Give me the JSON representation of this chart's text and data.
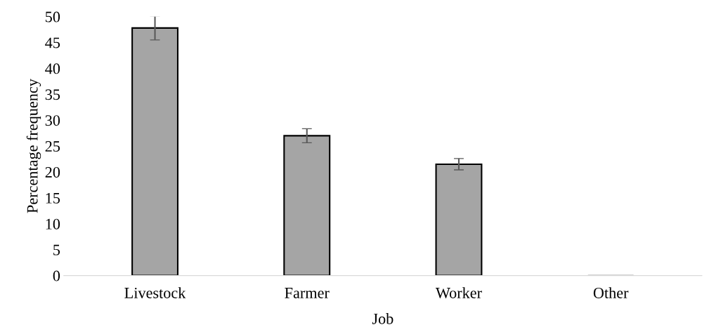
{
  "chart_data": {
    "type": "bar",
    "xlabel": "Job",
    "ylabel": "Percentage frequency",
    "categories": [
      "Livestock",
      "Farmer",
      "Worker",
      "Other"
    ],
    "values": [
      47.8,
      27.0,
      21.5,
      0
    ],
    "errors": [
      2.3,
      1.35,
      1.1,
      null
    ],
    "color": "#a5a5a5",
    "ylim": [
      0,
      50
    ],
    "yticks": [
      0,
      5,
      10,
      15,
      20,
      25,
      30,
      35,
      40,
      45,
      50
    ],
    "grid": false
  }
}
